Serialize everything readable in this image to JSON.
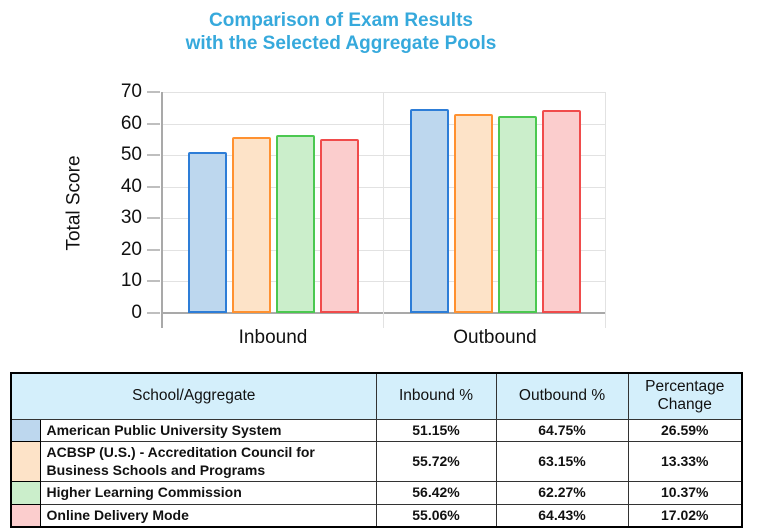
{
  "title": {
    "line1": "Comparison of Exam Results",
    "line2": "with the Selected Aggregate Pools",
    "color": "#36a9dc"
  },
  "chart_data": {
    "type": "bar",
    "categories": [
      "Inbound",
      "Outbound"
    ],
    "series": [
      {
        "name": "American Public University System",
        "values": [
          51.15,
          64.75
        ],
        "fill": "#bdd7ee",
        "border": "#2d7dd7"
      },
      {
        "name": "ACBSP (U.S.) - Accreditation Council for Business Schools and Programs",
        "values": [
          55.72,
          63.15
        ],
        "fill": "#fde3c8",
        "border": "#ff9130"
      },
      {
        "name": "Higher Learning Commission",
        "values": [
          56.42,
          62.27
        ],
        "fill": "#cbeecb",
        "border": "#4bc850"
      },
      {
        "name": "Online Delivery Mode",
        "values": [
          55.06,
          64.43
        ],
        "fill": "#fbcdcd",
        "border": "#f04b4b"
      }
    ],
    "title": "Comparison of Exam Results with the Selected Aggregate Pools",
    "xlabel": "",
    "ylabel": "Total Score",
    "ylim": [
      0,
      70
    ],
    "ytick_step": 10,
    "grid": true,
    "legend_position": "none"
  },
  "table": {
    "header": {
      "school": "School/Aggregate",
      "inbound": "Inbound %",
      "outbound": "Outbound %",
      "change": "Percentage Change"
    },
    "header_bg": "#d4effb",
    "rows": [
      {
        "school": "American Public University System",
        "inbound": "51.15%",
        "outbound": "64.75%",
        "change": "26.59%",
        "swatch": "#bdd7ee"
      },
      {
        "school": "ACBSP (U.S.) - Accreditation Council for Business Schools and Programs",
        "inbound": "55.72%",
        "outbound": "63.15%",
        "change": "13.33%",
        "swatch": "#fde3c8"
      },
      {
        "school": "Higher Learning Commission",
        "inbound": "56.42%",
        "outbound": "62.27%",
        "change": "10.37%",
        "swatch": "#cbeecb"
      },
      {
        "school": "Online Delivery Mode",
        "inbound": "55.06%",
        "outbound": "64.43%",
        "change": "17.02%",
        "swatch": "#fbcdcd"
      }
    ]
  }
}
